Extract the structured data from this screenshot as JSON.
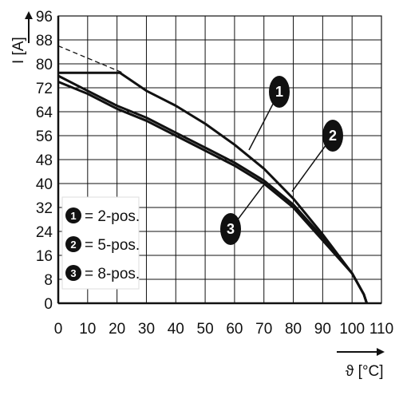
{
  "chart_data": {
    "type": "line",
    "title": "",
    "xlabel": "ϑ [°C]",
    "ylabel": "I [A]",
    "xlim": [
      0,
      110
    ],
    "ylim": [
      0,
      96
    ],
    "xticks": [
      "0",
      "10",
      "20",
      "30",
      "40",
      "50",
      "60",
      "70",
      "80",
      "90",
      "100",
      "110"
    ],
    "yticks": [
      "0",
      "8",
      "16",
      "24",
      "32",
      "40",
      "48",
      "56",
      "64",
      "72",
      "80",
      "88",
      "96"
    ],
    "grid": true,
    "legend_position": "bottom-left",
    "series": [
      {
        "marker": "1",
        "name": "= 2-pos.",
        "points": [
          [
            0,
            77
          ],
          [
            21,
            77
          ],
          [
            30,
            71
          ],
          [
            40,
            66
          ],
          [
            50,
            60
          ],
          [
            60,
            53
          ],
          [
            70,
            45
          ],
          [
            80,
            35
          ],
          [
            90,
            23
          ],
          [
            100,
            10
          ],
          [
            104,
            3
          ],
          [
            105,
            0
          ]
        ]
      },
      {
        "marker": "2",
        "name": "= 5-pos.",
        "points": [
          [
            0,
            76
          ],
          [
            10,
            71
          ],
          [
            20,
            66
          ],
          [
            30,
            62
          ],
          [
            40,
            57
          ],
          [
            50,
            52
          ],
          [
            60,
            47
          ],
          [
            70,
            41
          ],
          [
            80,
            33
          ],
          [
            90,
            22
          ],
          [
            100,
            10
          ],
          [
            104,
            3
          ],
          [
            105,
            0
          ]
        ]
      },
      {
        "marker": "3",
        "name": "= 8-pos.",
        "points": [
          [
            0,
            74
          ],
          [
            10,
            70
          ],
          [
            20,
            65
          ],
          [
            30,
            61
          ],
          [
            40,
            56
          ],
          [
            50,
            51
          ],
          [
            60,
            46
          ],
          [
            70,
            40
          ],
          [
            80,
            32
          ],
          [
            90,
            21
          ],
          [
            100,
            10
          ],
          [
            104,
            3
          ],
          [
            105,
            0
          ]
        ]
      }
    ],
    "reference_line": {
      "style": "dashed",
      "points": [
        [
          0,
          86
        ],
        [
          22,
          77
        ]
      ]
    }
  }
}
